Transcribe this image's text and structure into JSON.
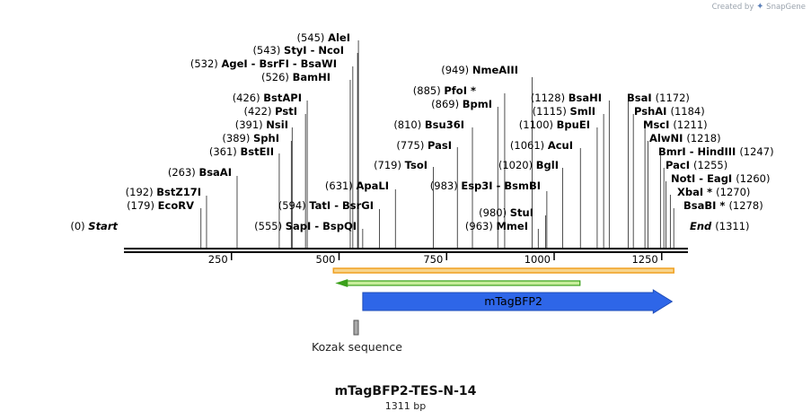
{
  "credit": {
    "prefix": "Created by",
    "brand": "SnapGene"
  },
  "title": "mTagBFP2-TES-N-14",
  "length_label": "1311 bp",
  "sequence_length": 1311,
  "ruler_ticks": [
    250,
    500,
    750,
    1000,
    1250
  ],
  "start_label": {
    "pos": "(0)",
    "name": "Start"
  },
  "end_label": {
    "pos": "(1311)",
    "name": "End"
  },
  "colors": {
    "backbone": "#000000",
    "orange_band": "#f0a020",
    "orange_band_fill": "#f7d48c",
    "green_arrow": "#3aa01a",
    "green_arrow_fill": "#c8ee9c",
    "feature_blue": "#2e66e8",
    "feature_text": "#ffffff",
    "kozak": "#909090"
  },
  "features": {
    "mtagbfp2": {
      "label": "mTagBFP2",
      "start": 553,
      "end": 1272
    },
    "kozak": {
      "label": "Kozak sequence",
      "start": 545,
      "end": 553
    },
    "orange_band": {
      "start": 487,
      "end": 1278
    },
    "green_arrow": {
      "start": 487,
      "end": 1060
    }
  },
  "sites_left": [
    {
      "pos": "(0)",
      "name": "Start",
      "bp": 0
    },
    {
      "pos": "(179)",
      "name": "EcoRV",
      "bp": 179
    },
    {
      "pos": "(192)",
      "name": "BstZ17I",
      "bp": 192
    },
    {
      "pos": "(263)",
      "name": "BsaAI",
      "bp": 263
    },
    {
      "pos": "(361)",
      "name": "BstEII",
      "bp": 361
    },
    {
      "pos": "(389)",
      "name": "SphI",
      "bp": 389
    },
    {
      "pos": "(391)",
      "name": "NsiI",
      "bp": 391
    },
    {
      "pos": "(422)",
      "name": "PstI",
      "bp": 422
    },
    {
      "pos": "(426)",
      "name": "BstAPI",
      "bp": 426
    },
    {
      "pos": "(526)",
      "name": "BamHI",
      "bp": 526
    },
    {
      "pos": "(532)",
      "name": "AgeI",
      "name2": "BsrFI",
      "name3": "BsaWI",
      "bp": 532
    },
    {
      "pos": "(543)",
      "name": "StyI",
      "name2": "NcoI",
      "bp": 543
    },
    {
      "pos": "(545)",
      "name": "AleI",
      "bp": 545
    },
    {
      "pos": "(555)",
      "name": "SapI",
      "name2": "BspQI",
      "bp": 555
    },
    {
      "pos": "(594)",
      "name": "TatI",
      "name2": "BsrGI",
      "bp": 594
    },
    {
      "pos": "(631)",
      "name": "ApaLI",
      "bp": 631
    }
  ],
  "sites_mid": [
    {
      "pos": "(719)",
      "name": "TsoI",
      "bp": 719
    },
    {
      "pos": "(775)",
      "name": "PasI",
      "bp": 775
    },
    {
      "pos": "(810)",
      "name": "Bsu36I",
      "bp": 810
    },
    {
      "pos": "(869)",
      "name": "BpmI",
      "bp": 869
    },
    {
      "pos": "(885)",
      "name": "PfoI *",
      "bp": 885
    },
    {
      "pos": "(949)",
      "name": "NmeAIII",
      "bp": 949
    },
    {
      "pos": "(963)",
      "name": "MmeI",
      "bp": 963
    },
    {
      "pos": "(980)",
      "name": "StuI",
      "bp": 980
    },
    {
      "pos": "(983)",
      "name": "Esp3I",
      "name2": "BsmBI",
      "bp": 983
    },
    {
      "pos": "(1020)",
      "name": "BglI",
      "bp": 1020
    },
    {
      "pos": "(1061)",
      "name": "AcuI",
      "bp": 1061
    },
    {
      "pos": "(1100)",
      "name": "BpuEI",
      "bp": 1100
    },
    {
      "pos": "(1115)",
      "name": "SmlI",
      "bp": 1115
    },
    {
      "pos": "(1128)",
      "name": "BsaHI",
      "bp": 1128
    }
  ],
  "sites_right": [
    {
      "pos": "(1172)",
      "name": "BsaI",
      "bp": 1172
    },
    {
      "pos": "(1184)",
      "name": "PshAI",
      "bp": 1184
    },
    {
      "pos": "(1211)",
      "name": "MscI",
      "bp": 1211
    },
    {
      "pos": "(1218)",
      "name": "AlwNI",
      "bp": 1218
    },
    {
      "pos": "(1247)",
      "name": "BmrI",
      "name2": "HindIII",
      "bp": 1247
    },
    {
      "pos": "(1255)",
      "name": "PacI",
      "bp": 1255
    },
    {
      "pos": "(1260)",
      "name": "NotI",
      "name2": "EagI",
      "bp": 1260
    },
    {
      "pos": "(1270)",
      "name": "XbaI *",
      "bp": 1270
    },
    {
      "pos": "(1278)",
      "name": "BsaBI *",
      "bp": 1278
    },
    {
      "pos": "(1311)",
      "name": "End",
      "bp": 1311
    }
  ]
}
